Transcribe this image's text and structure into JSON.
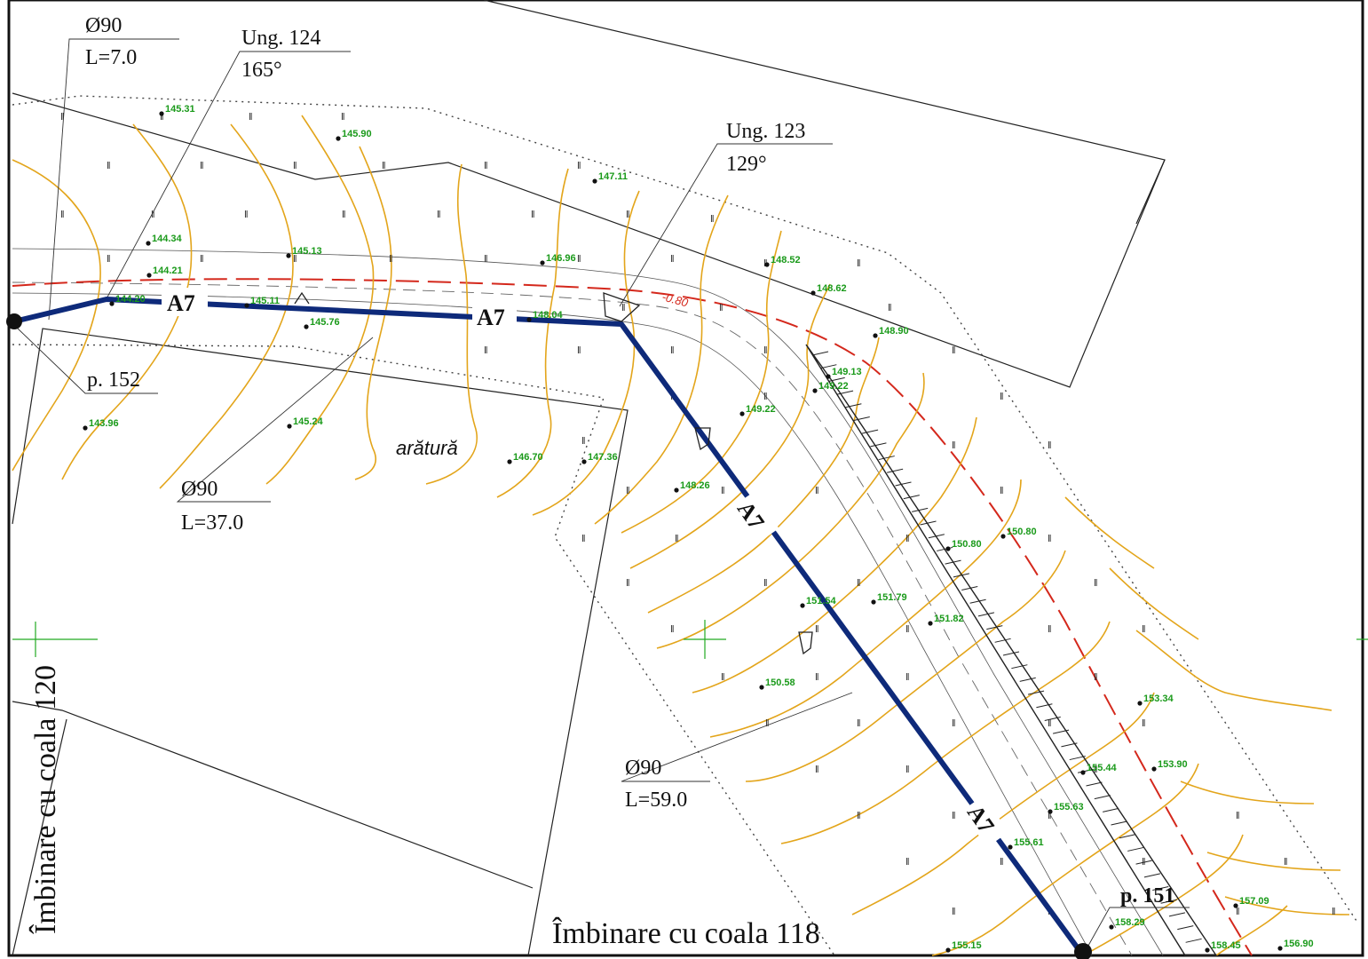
{
  "colors": {
    "pipe": "#0e2a7a",
    "contour": "#e3a51b",
    "elevation": "#1a9a1a",
    "boundary_red": "#d4281c",
    "ink": "#111111",
    "grid_cross": "#22aa22"
  },
  "pipe": {
    "label": "A7",
    "segment_labels": [
      "A7",
      "A7",
      "A7",
      "A7"
    ]
  },
  "callouts": {
    "seg1": {
      "diameter": "Ø90",
      "length": "L=7.0"
    },
    "seg2": {
      "diameter": "Ø90",
      "length": "L=37.0"
    },
    "seg3": {
      "diameter": "Ø90",
      "length": "L=59.0"
    },
    "angle124": {
      "name": "Ung. 124",
      "value": "165°"
    },
    "angle123": {
      "name": "Ung. 123",
      "value": "129°"
    },
    "point152": "p. 152",
    "point151": "p. 151"
  },
  "sheet_joins": {
    "left": "Îmbinare cu coala 120",
    "bottom": "Îmbinare cu coala 118"
  },
  "land_use": "arătură",
  "depth_label": "-0.80",
  "elevations": [
    "145.31",
    "145.90",
    "147.11",
    "144.34",
    "145.13",
    "146.96",
    "148.52",
    "144.21",
    "148.62",
    "144.20",
    "145.11",
    "145.76",
    "148.04",
    "148.90",
    "149.13",
    "149.22",
    "149.22",
    "143.96",
    "145.24",
    "146.70",
    "147.36",
    "148.26",
    "150.80",
    "150.80",
    "151.54",
    "151.79",
    "151.82",
    "150.58",
    "153.34",
    "153.90",
    "155.44",
    "155.63",
    "155.61",
    "157.09",
    "158.29",
    "155.15",
    "158.45",
    "156.90"
  ]
}
